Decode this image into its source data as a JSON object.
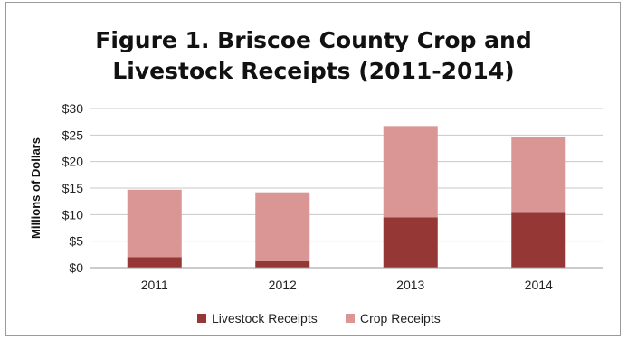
{
  "chart_data": {
    "type": "bar",
    "stacked": true,
    "title_lines": [
      "Figure 1. Briscoe County Crop and",
      "Livestock Receipts (2011-2014)"
    ],
    "ylabel": "Millions of Dollars",
    "xlabel": "",
    "categories": [
      "2011",
      "2012",
      "2013",
      "2014"
    ],
    "ylim": [
      0,
      30
    ],
    "yticks": [
      0,
      5,
      10,
      15,
      20,
      25,
      30
    ],
    "ytick_labels": [
      "$0",
      "$5",
      "$10",
      "$15",
      "$20",
      "$25",
      "$30"
    ],
    "grid": true,
    "legend_position": "bottom",
    "series": [
      {
        "name": "Livestock Receipts",
        "values": [
          2.0,
          1.2,
          9.5,
          10.5
        ],
        "color": "#953735"
      },
      {
        "name": "Crop Receipts",
        "values": [
          12.7,
          13.0,
          17.2,
          14.1
        ],
        "color": "#d99694"
      }
    ]
  }
}
